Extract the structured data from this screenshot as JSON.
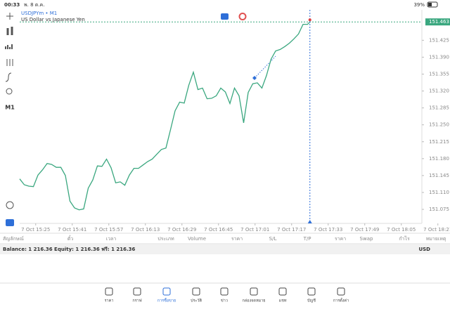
{
  "status_bar": {
    "time": "00:33",
    "date": "พ. 8 ต.ค.",
    "battery": "39%"
  },
  "toolbar": {
    "timeframe": "M1"
  },
  "chart_data": {
    "type": "line",
    "title": "USDJPYm • M1",
    "subtitle": "US Dollar vs Japanese Yen",
    "color": "#3aa77f",
    "x": [
      918,
      920,
      922,
      924,
      926,
      928,
      930,
      932,
      934,
      936,
      938,
      940,
      942,
      944,
      946,
      948,
      950,
      952,
      954,
      956,
      958,
      960,
      962,
      964,
      966,
      968,
      970,
      972,
      974,
      976,
      978,
      980,
      982,
      984,
      986,
      988,
      990,
      992,
      994,
      996,
      998,
      1000,
      1002,
      1004,
      1006,
      1008,
      1010,
      1012,
      1014,
      1016,
      1018,
      1020,
      1022,
      1024,
      1026,
      1028,
      1030,
      1032,
      1034,
      1036,
      1038,
      1040,
      1042,
      1044,
      1045
    ],
    "values": [
      151.138,
      151.126,
      151.123,
      151.122,
      151.146,
      151.157,
      151.17,
      151.168,
      151.162,
      151.162,
      151.145,
      151.092,
      151.078,
      151.074,
      151.076,
      151.119,
      151.136,
      151.165,
      151.164,
      151.179,
      151.161,
      151.13,
      151.132,
      151.125,
      151.146,
      151.16,
      151.16,
      151.167,
      151.174,
      151.179,
      151.189,
      151.199,
      151.202,
      151.24,
      151.279,
      151.297,
      151.295,
      151.332,
      151.359,
      151.323,
      151.326,
      151.304,
      151.305,
      151.31,
      151.326,
      151.318,
      151.294,
      151.326,
      151.31,
      151.254,
      151.317,
      151.335,
      151.337,
      151.326,
      151.352,
      151.386,
      151.403,
      151.406,
      151.412,
      151.419,
      151.428,
      151.438,
      151.458,
      151.458,
      151.463
    ],
    "last_price": 151.463,
    "xlim": [
      918,
      1094
    ],
    "ylim": [
      151.046,
      151.488
    ],
    "xticks": [
      {
        "value": 925,
        "label": "7 Oct 15:25"
      },
      {
        "value": 941,
        "label": "7 Oct 15:41"
      },
      {
        "value": 957,
        "label": "7 Oct 15:57"
      },
      {
        "value": 973,
        "label": "7 Oct 16:13"
      },
      {
        "value": 989,
        "label": "7 Oct 16:29"
      },
      {
        "value": 1005,
        "label": "7 Oct 16:45"
      },
      {
        "value": 1021,
        "label": "7 Oct 17:01"
      },
      {
        "value": 1037,
        "label": "7 Oct 17:17"
      },
      {
        "value": 1053,
        "label": "7 Oct 17:33"
      },
      {
        "value": 1069,
        "label": "7 Oct 17:49"
      },
      {
        "value": 1085,
        "label": "7 Oct 18:05"
      },
      {
        "value": 1101,
        "label": "7 Oct 18:21"
      }
    ],
    "yticks": [
      151.075,
      {
        "value": 151.11,
        "label": "151.110"
      },
      151.145,
      {
        "value": 151.18,
        "label": "151.180"
      },
      151.215,
      {
        "value": 151.25,
        "label": "151.250"
      },
      151.285,
      {
        "value": 151.32,
        "label": "151.320"
      },
      151.355,
      {
        "value": 151.39,
        "label": "151.390"
      },
      151.425
    ]
  },
  "table_header": [
    "สัญลักษณ์",
    "ตั๋ว",
    "เวลา",
    "ประเภท",
    "Volume",
    "ราคา",
    "S/L",
    "T/P",
    "ราคา",
    "Swap",
    "กำไร",
    "หมายเหตุ"
  ],
  "balance": {
    "text": "Balance: 1 216.36 Equity: 1 216.36 ฟรี: 1 216.36",
    "currency": "USD"
  },
  "tabs": [
    "ราคา",
    "กราฟ",
    "การซื้อขาย",
    "ประวัติ",
    "ข่าว",
    "กล่องจดหมาย",
    "แชท",
    "บัญชี",
    "การตั้งค่า"
  ]
}
